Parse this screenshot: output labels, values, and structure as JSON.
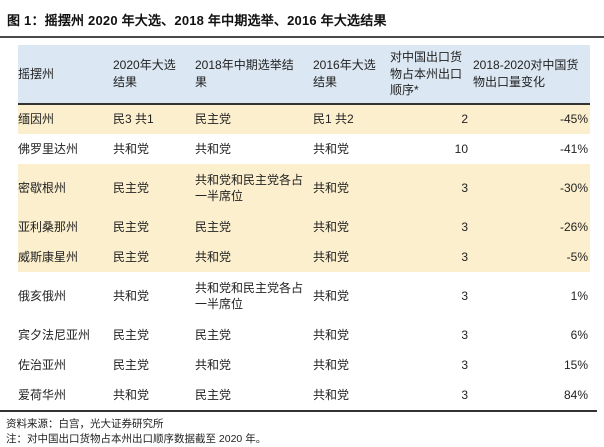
{
  "title": "图 1：摇摆州 2020 年大选、2018 年中期选举、2016 年大选结果",
  "colors": {
    "header_bg": "#dbe7f2",
    "highlight_bg": "#fcefcd",
    "rule": "#333333"
  },
  "table": {
    "headers": [
      "摇摆州",
      "2020年大选结果",
      "2018年中期选举结果",
      "2016年大选结果",
      "对中国出口货物占本州出口顺序*",
      "2018-2020对中国货物出口量变化"
    ],
    "rows": [
      {
        "state": "缅因州",
        "r2020": "民3 共1",
        "r2018": "民主党",
        "r2016": "民1 共2",
        "rank": "2",
        "change": "-45%",
        "highlighted": true
      },
      {
        "state": "佛罗里达州",
        "r2020": "共和党",
        "r2018": "共和党",
        "r2016": "共和党",
        "rank": "10",
        "change": "-41%",
        "highlighted": false
      },
      {
        "state": "密歇根州",
        "r2020": "民主党",
        "r2018": "共和党和民主党各占一半席位",
        "r2016": "共和党",
        "rank": "3",
        "change": "-30%",
        "highlighted": true
      },
      {
        "state": "亚利桑那州",
        "r2020": "民主党",
        "r2018": "民主党",
        "r2016": "共和党",
        "rank": "3",
        "change": "-26%",
        "highlighted": true
      },
      {
        "state": "威斯康星州",
        "r2020": "民主党",
        "r2018": "共和党",
        "r2016": "共和党",
        "rank": "3",
        "change": "-5%",
        "highlighted": true
      },
      {
        "state": "俄亥俄州",
        "r2020": "共和党",
        "r2018": "共和党和民主党各占一半席位",
        "r2016": "共和党",
        "rank": "3",
        "change": "1%",
        "highlighted": false
      },
      {
        "state": "宾夕法尼亚州",
        "r2020": "民主党",
        "r2018": "民主党",
        "r2016": "共和党",
        "rank": "3",
        "change": "6%",
        "highlighted": false
      },
      {
        "state": "佐治亚州",
        "r2020": "民主党",
        "r2018": "共和党",
        "r2016": "共和党",
        "rank": "3",
        "change": "15%",
        "highlighted": false
      },
      {
        "state": "爱荷华州",
        "r2020": "共和党",
        "r2018": "民主党",
        "r2016": "共和党",
        "rank": "3",
        "change": "84%",
        "highlighted": false
      }
    ]
  },
  "footer": {
    "source": "资料来源：白宫，光大证券研究所",
    "note": "注：对中国出口货物占本州出口顺序数据截至 2020 年。"
  }
}
